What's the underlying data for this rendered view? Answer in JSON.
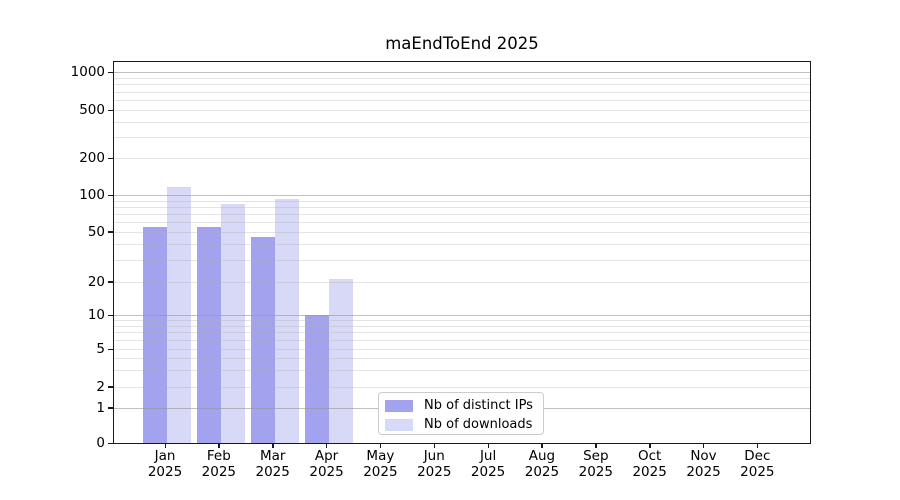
{
  "title": "maEndToEnd 2025",
  "chart_data": {
    "type": "bar",
    "title": "maEndToEnd 2025",
    "categories": [
      "Jan 2025",
      "Feb 2025",
      "Mar 2025",
      "Apr 2025",
      "May 2025",
      "Jun 2025",
      "Jul 2025",
      "Aug 2025",
      "Sep 2025",
      "Oct 2025",
      "Nov 2025",
      "Dec 2025"
    ],
    "month_labels": [
      "Jan",
      "Feb",
      "Mar",
      "Apr",
      "May",
      "Jun",
      "Jul",
      "Aug",
      "Sep",
      "Oct",
      "Nov",
      "Dec"
    ],
    "year_label": "2025",
    "series": [
      {
        "name": "Nb of distinct IPs",
        "color": "#a2a2ee",
        "values": [
          55,
          55,
          45,
          10,
          null,
          null,
          null,
          null,
          null,
          null,
          null,
          null
        ]
      },
      {
        "name": "Nb of downloads",
        "color": "#d8d8f7",
        "values": [
          117,
          85,
          92,
          21,
          null,
          null,
          null,
          null,
          null,
          null,
          null,
          null
        ]
      }
    ],
    "yscale": "symlog",
    "ytick_values": [
      0,
      1,
      2,
      5,
      10,
      20,
      50,
      100,
      200,
      500,
      1000
    ],
    "ylim": [
      0,
      1230
    ],
    "grid": true,
    "legend": {
      "position": "lower center inside",
      "items": [
        {
          "label": "Nb of distinct IPs",
          "color": "#a2a2ee"
        },
        {
          "label": "Nb of downloads",
          "color": "#d8d8f7"
        }
      ]
    }
  },
  "colors": {
    "bar_distinct_ips": "#a2a2ee",
    "bar_downloads": "#d8d8f7",
    "major_gridline": "#c6c6c6",
    "minor_gridline": "#ececec",
    "axis": "#1a1a1a",
    "background": "#ffffff"
  }
}
